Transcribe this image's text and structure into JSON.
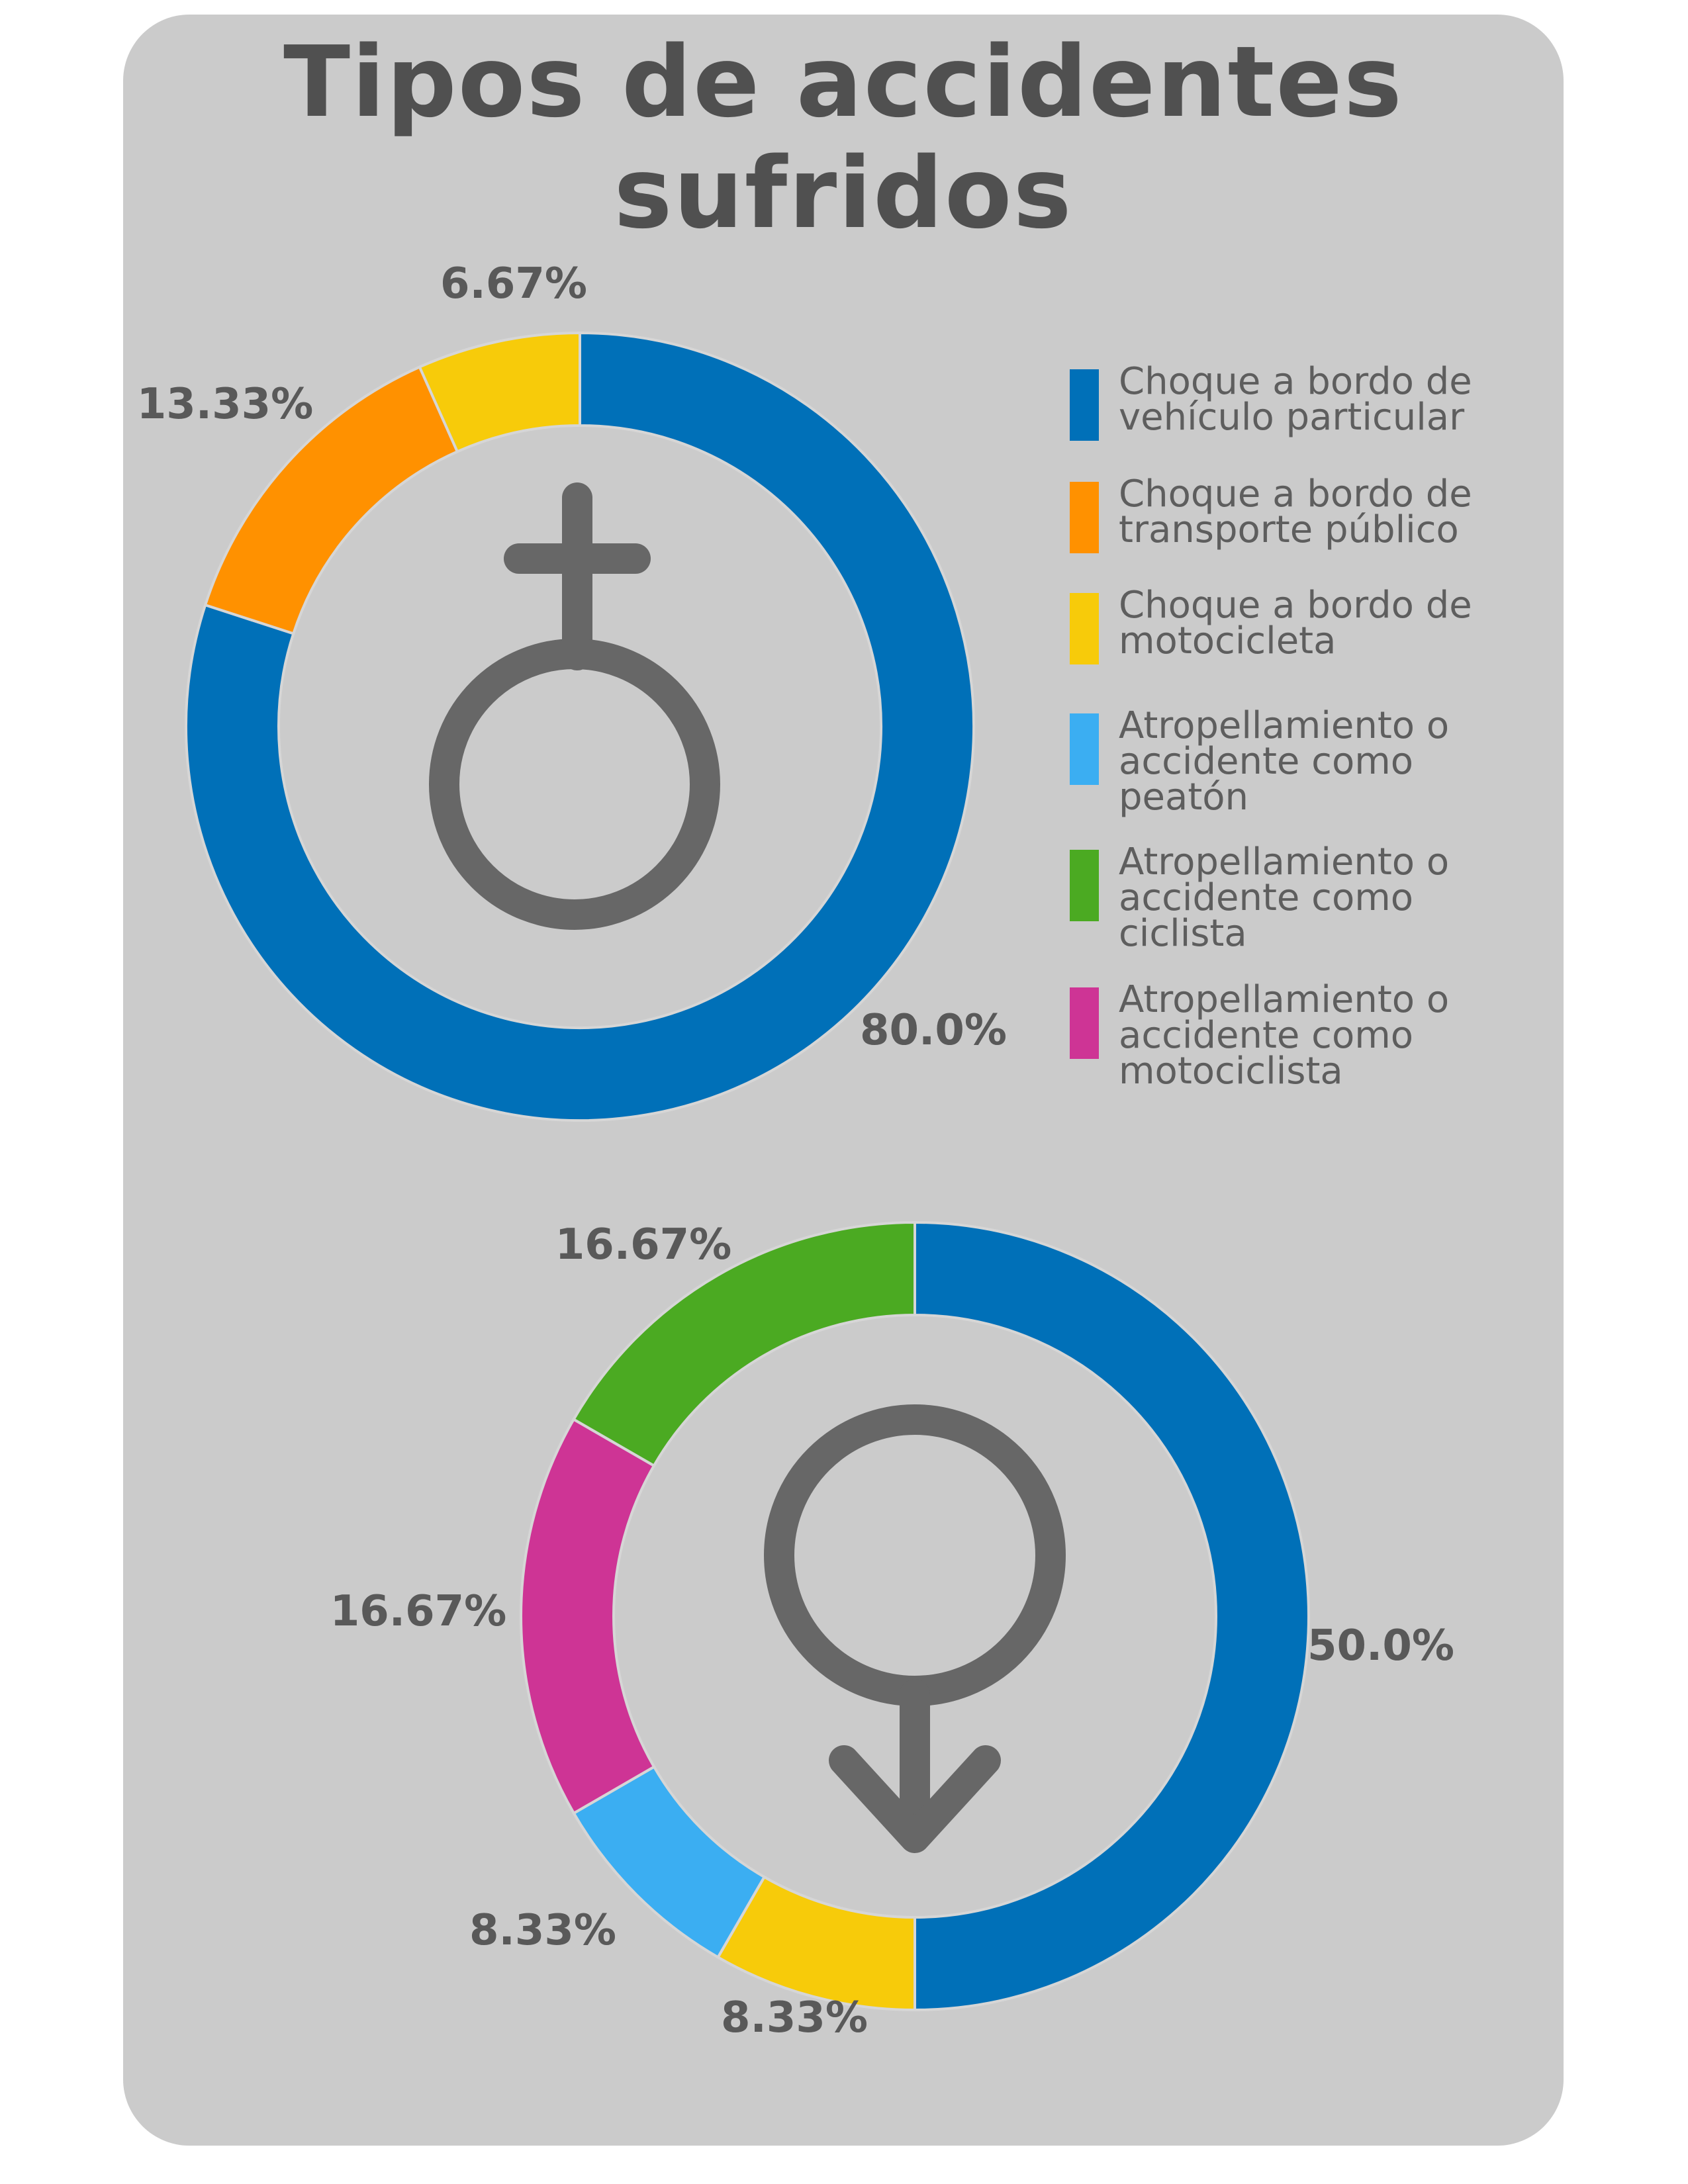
{
  "title_lines": [
    "Tipos de accidentes",
    "sufridos"
  ],
  "legend": [
    {
      "label": "Choque a bordo de vehículo particular",
      "color": "#0070B8"
    },
    {
      "label": "Choque a bordo de transporte público",
      "color": "#FF9100"
    },
    {
      "label": "Choque a bordo de motocicleta",
      "color": "#F7CB0A"
    },
    {
      "label": "Atropellamiento o accidente como peatón",
      "color": "#3BAEF2"
    },
    {
      "label": "Atropellamiento o accidente como ciclista",
      "color": "#4BAA22"
    },
    {
      "label": "Atropellamiento o accidente como motociclista",
      "color": "#CE3495"
    }
  ],
  "icons": [
    "female-symbol-icon",
    "male-symbol-icon"
  ],
  "chart_data": [
    {
      "type": "pie",
      "variant": "donut",
      "center_icon": "female-symbol-icon",
      "categories": [
        "Choque a bordo de vehículo particular",
        "Choque a bordo de transporte público",
        "Choque a bordo de motocicleta"
      ],
      "values": [
        80.0,
        13.33,
        6.67
      ],
      "labels": [
        "80.0%",
        "13.33%",
        "6.67%"
      ],
      "colors": [
        "#0070B8",
        "#FF9100",
        "#F7CB0A"
      ],
      "legend_position": "right"
    },
    {
      "type": "pie",
      "variant": "donut",
      "center_icon": "male-symbol-icon",
      "categories": [
        "Choque a bordo de vehículo particular",
        "Choque a bordo de motocicleta",
        "Atropellamiento o accidente como peatón",
        "Atropellamiento o accidente como motociclista",
        "Atropellamiento o accidente como ciclista"
      ],
      "values": [
        50.0,
        8.33,
        8.33,
        16.67,
        16.67
      ],
      "labels": [
        "50.0%",
        "8.33%",
        "8.33%",
        "16.67%",
        "16.67%"
      ],
      "colors": [
        "#0070B8",
        "#F7CB0A",
        "#3BAEF2",
        "#CE3495",
        "#4BAA22"
      ]
    }
  ]
}
